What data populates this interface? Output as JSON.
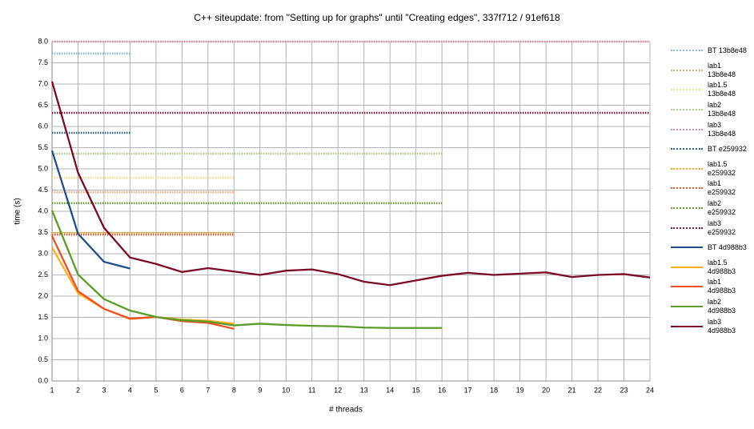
{
  "chart_data": {
    "type": "line",
    "title": "C++ siteupdate: from \"Setting up for graphs\" until \"Creating edges\", 337f712 / 91ef618",
    "x_label": "# threads",
    "y_label": "time (s)",
    "x": [
      1,
      2,
      3,
      4,
      5,
      6,
      7,
      8,
      9,
      10,
      11,
      12,
      13,
      14,
      15,
      16,
      17,
      18,
      19,
      20,
      21,
      22,
      23,
      24
    ],
    "xlim": [
      1,
      24
    ],
    "xticks": [
      1,
      2,
      3,
      4,
      5,
      6,
      7,
      8,
      9,
      10,
      11,
      12,
      13,
      14,
      15,
      16,
      17,
      18,
      19,
      20,
      21,
      22,
      23,
      24
    ],
    "ylim": [
      0,
      8
    ],
    "yticks": [
      {
        "value": 0,
        "label": "0.0"
      },
      0.5,
      {
        "value": 1,
        "label": "1.0"
      },
      1.5,
      {
        "value": 2,
        "label": "2.0"
      },
      2.5,
      {
        "value": 3,
        "label": "3.0"
      },
      3.5,
      {
        "value": 4,
        "label": "4.0"
      },
      4.5,
      {
        "value": 5,
        "label": "5.0"
      },
      5.5,
      {
        "value": 6,
        "label": "6.0"
      },
      6.5,
      {
        "value": 7,
        "label": "7.0"
      },
      7.5,
      {
        "value": 8,
        "label": "8.0"
      }
    ],
    "grid": true,
    "legend": "right",
    "series": [
      {
        "name": "BT 13b8e48",
        "color": "#8cb3de",
        "style": "dotted",
        "values": [
          7.72,
          7.72,
          7.72,
          7.72,
          null,
          null,
          null,
          null,
          null,
          null,
          null,
          null,
          null,
          null,
          null,
          null,
          null,
          null,
          null,
          null,
          null,
          null,
          null,
          null
        ]
      },
      {
        "name": "lab1 13b8e48",
        "color": "#f6a47e",
        "style": "dotted",
        "values": [
          4.45,
          4.45,
          4.45,
          4.45,
          4.45,
          4.45,
          4.45,
          4.45,
          null,
          null,
          null,
          null,
          null,
          null,
          null,
          null,
          null,
          null,
          null,
          null,
          null,
          null,
          null,
          null
        ]
      },
      {
        "name": "lab1.5 13b8e48",
        "color": "#ffd88a",
        "style": "dotted",
        "values": [
          4.79,
          4.79,
          4.79,
          4.79,
          4.79,
          4.79,
          4.79,
          4.79,
          null,
          null,
          null,
          null,
          null,
          null,
          null,
          null,
          null,
          null,
          null,
          null,
          null,
          null,
          null,
          null
        ]
      },
      {
        "name": "lab2 13b8e48",
        "color": "#a7cf8b",
        "style": "dotted",
        "values": [
          5.36,
          5.36,
          5.36,
          5.36,
          5.36,
          5.36,
          5.36,
          5.36,
          5.36,
          5.36,
          5.36,
          5.36,
          5.36,
          5.36,
          5.36,
          5.36,
          null,
          null,
          null,
          null,
          null,
          null,
          null,
          null
        ]
      },
      {
        "name": "lab3 13b8e48",
        "color": "#d88ea0",
        "style": "dotted",
        "values": [
          8,
          8,
          8,
          8,
          8,
          8,
          8,
          8,
          8,
          8,
          8,
          8,
          8,
          8,
          8,
          8,
          8,
          8,
          8,
          8,
          8,
          8,
          8,
          8
        ]
      },
      {
        "name": "BT e259932",
        "color": "#2a6099",
        "style": "dotted",
        "values": [
          5.85,
          5.85,
          5.85,
          5.85,
          null,
          null,
          null,
          null,
          null,
          null,
          null,
          null,
          null,
          null,
          null,
          null,
          null,
          null,
          null,
          null,
          null,
          null,
          null,
          null
        ]
      },
      {
        "name": "lab1.5 e259932",
        "color": "#f5a623",
        "style": "dotted",
        "values": [
          3.49,
          3.49,
          3.49,
          3.49,
          3.49,
          3.49,
          3.49,
          3.49,
          null,
          null,
          null,
          null,
          null,
          null,
          null,
          null,
          null,
          null,
          null,
          null,
          null,
          null,
          null,
          null
        ]
      },
      {
        "name": "lab1 e259932",
        "color": "#f0552a",
        "style": "dotted",
        "values": [
          3.45,
          3.45,
          3.45,
          3.45,
          3.45,
          3.45,
          3.45,
          3.45,
          null,
          null,
          null,
          null,
          null,
          null,
          null,
          null,
          null,
          null,
          null,
          null,
          null,
          null,
          null,
          null
        ]
      },
      {
        "name": "lab2 e259932",
        "color": "#5ea02e",
        "style": "dotted",
        "values": [
          4.19,
          4.19,
          4.19,
          4.19,
          4.19,
          4.19,
          4.19,
          4.19,
          4.19,
          4.19,
          4.19,
          4.19,
          4.19,
          4.19,
          4.19,
          4.19,
          null,
          null,
          null,
          null,
          null,
          null,
          null,
          null
        ]
      },
      {
        "name": "lab3 e259932",
        "color": "#8c1a3e",
        "style": "dotted",
        "values": [
          6.32,
          6.32,
          6.32,
          6.32,
          6.32,
          6.32,
          6.32,
          6.32,
          6.32,
          6.32,
          6.32,
          6.32,
          6.32,
          6.32,
          6.32,
          6.32,
          6.32,
          6.32,
          6.32,
          6.32,
          6.32,
          6.32,
          6.32,
          6.32
        ]
      },
      {
        "name": "BT 4d988b3",
        "color": "#1f4e8c",
        "style": "solid",
        "values": [
          5.43,
          3.47,
          2.81,
          2.65,
          null,
          null,
          null,
          null,
          null,
          null,
          null,
          null,
          null,
          null,
          null,
          null,
          null,
          null,
          null,
          null,
          null,
          null,
          null,
          null
        ]
      },
      {
        "name": "lab1.5 4d988b3",
        "color": "#ffad1f",
        "style": "solid",
        "values": [
          3.15,
          2.07,
          1.7,
          1.46,
          1.51,
          1.45,
          1.42,
          1.35,
          null,
          null,
          null,
          null,
          null,
          null,
          null,
          null,
          null,
          null,
          null,
          null,
          null,
          null,
          null,
          null
        ]
      },
      {
        "name": "lab1 4d988b3",
        "color": "#f04e23",
        "style": "solid",
        "values": [
          3.42,
          2.12,
          1.7,
          1.47,
          1.51,
          1.41,
          1.37,
          1.23,
          null,
          null,
          null,
          null,
          null,
          null,
          null,
          null,
          null,
          null,
          null,
          null,
          null,
          null,
          null,
          null
        ]
      },
      {
        "name": "lab2 4d988b3",
        "color": "#5b9c28",
        "style": "solid",
        "values": [
          4.02,
          2.51,
          1.93,
          1.66,
          1.51,
          1.43,
          1.4,
          1.31,
          1.35,
          1.32,
          1.3,
          1.29,
          1.26,
          1.25,
          1.25,
          1.25,
          null,
          null,
          null,
          null,
          null,
          null,
          null,
          null
        ]
      },
      {
        "name": "lab3 4d988b3",
        "color": "#7b0a25",
        "style": "solid",
        "values": [
          7.06,
          4.91,
          3.61,
          2.91,
          2.76,
          2.57,
          2.66,
          2.58,
          2.5,
          2.6,
          2.63,
          2.52,
          2.34,
          2.26,
          2.37,
          2.48,
          2.55,
          2.5,
          2.53,
          2.56,
          2.45,
          2.5,
          2.52,
          2.44
        ]
      }
    ]
  }
}
